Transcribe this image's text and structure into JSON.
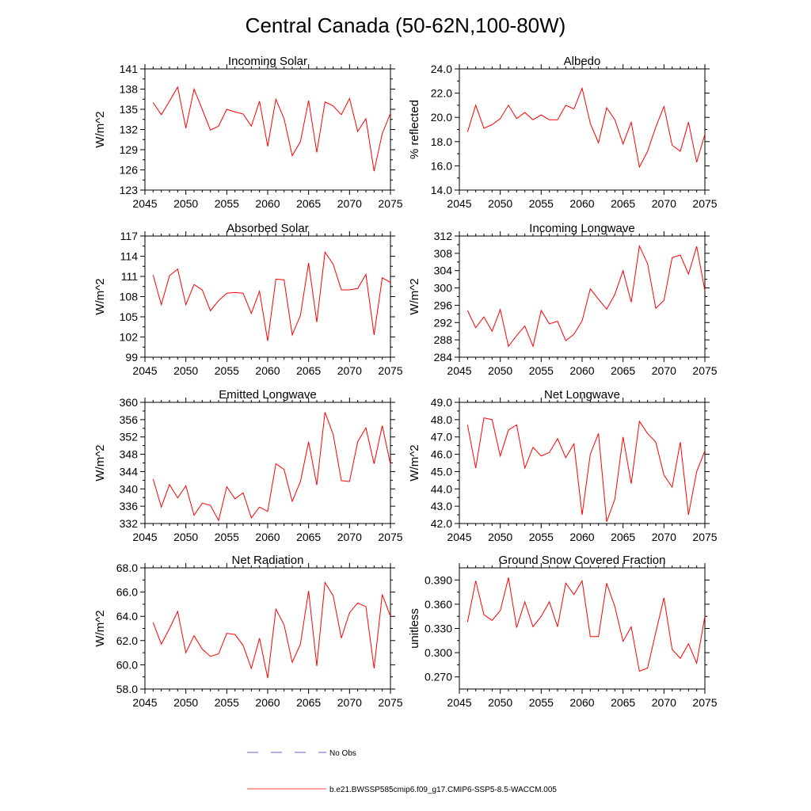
{
  "figure": {
    "title": "Central Canada (50-62N,100-80W)"
  },
  "colors": {
    "model_line": "#ff0000",
    "obs_line": "#2f2fb4",
    "axis": "#000000"
  },
  "legend": {
    "entries": [
      {
        "label": "No Obs",
        "style": "dashed",
        "color": "#2f2fb4"
      },
      {
        "label": "b.e21.BWSSP585cmip6.f09_g17.CMIP6-SSP5-8.5-WACCM.005",
        "style": "solid",
        "color": "#ff0000"
      }
    ]
  },
  "chart_data": [
    {
      "type": "line",
      "title": "Incoming Solar",
      "xlabel": "",
      "ylabel": "W/m^2",
      "xlim": [
        2045,
        2075
      ],
      "ylim": [
        123,
        141
      ],
      "xticks": [
        2045,
        2050,
        2055,
        2060,
        2065,
        2070,
        2075
      ],
      "xtick_labels": [
        "2045",
        "2050",
        "2055",
        "2060",
        "2065",
        "2070",
        "2075"
      ],
      "yticks": [
        123,
        126,
        129,
        132,
        135,
        138,
        141
      ],
      "ytick_labels": [
        "123",
        "126",
        "129",
        "132",
        "135",
        "138",
        "141"
      ],
      "x": [
        2046,
        2047,
        2048,
        2049,
        2050,
        2051,
        2052,
        2053,
        2054,
        2055,
        2056,
        2057,
        2058,
        2059,
        2060,
        2061,
        2062,
        2063,
        2064,
        2065,
        2066,
        2067,
        2068,
        2069,
        2070,
        2071,
        2072,
        2073,
        2074,
        2075
      ],
      "series": [
        {
          "name": "b.e21.BWSSP585cmip6.f09_g17.CMIP6-SSP5-8.5-WACCM.005",
          "values": [
            136.0,
            134.2,
            136.2,
            138.3,
            132.2,
            138.0,
            135.0,
            131.9,
            132.5,
            135.0,
            134.6,
            134.3,
            132.5,
            136.2,
            129.5,
            136.5,
            133.6,
            128.1,
            130.2,
            136.3,
            128.6,
            136.1,
            135.5,
            134.2,
            136.6,
            131.7,
            133.6,
            125.8,
            131.4,
            134.4
          ]
        }
      ]
    },
    {
      "type": "line",
      "title": "Albedo",
      "xlabel": "",
      "ylabel": "% reflected",
      "xlim": [
        2045,
        2075
      ],
      "ylim": [
        14.0,
        24.0
      ],
      "xticks": [
        2045,
        2050,
        2055,
        2060,
        2065,
        2070,
        2075
      ],
      "xtick_labels": [
        "2045",
        "2050",
        "2055",
        "2060",
        "2065",
        "2070",
        "2075"
      ],
      "yticks": [
        14.0,
        16.0,
        18.0,
        20.0,
        22.0,
        24.0
      ],
      "ytick_labels": [
        "14.0",
        "16.0",
        "18.0",
        "20.0",
        "22.0",
        "24.0"
      ],
      "x": [
        2046,
        2047,
        2048,
        2049,
        2050,
        2051,
        2052,
        2053,
        2054,
        2055,
        2056,
        2057,
        2058,
        2059,
        2060,
        2061,
        2062,
        2063,
        2064,
        2065,
        2066,
        2067,
        2068,
        2069,
        2070,
        2071,
        2072,
        2073,
        2074,
        2075
      ],
      "series": [
        {
          "name": "b.e21.BWSSP585cmip6.f09_g17.CMIP6-SSP5-8.5-WACCM.005",
          "values": [
            18.8,
            21.0,
            19.1,
            19.4,
            19.9,
            21.0,
            19.9,
            20.4,
            19.8,
            20.2,
            19.8,
            19.8,
            21.0,
            20.7,
            22.4,
            19.5,
            17.9,
            20.8,
            19.8,
            17.8,
            19.6,
            15.9,
            17.2,
            19.2,
            20.9,
            17.7,
            17.2,
            19.6,
            16.3,
            18.6
          ]
        }
      ]
    },
    {
      "type": "line",
      "title": "Absorbed Solar",
      "xlabel": "",
      "ylabel": "W/m^2",
      "xlim": [
        2045,
        2075
      ],
      "ylim": [
        99,
        117
      ],
      "xticks": [
        2045,
        2050,
        2055,
        2060,
        2065,
        2070,
        2075
      ],
      "xtick_labels": [
        "2045",
        "2050",
        "2055",
        "2060",
        "2065",
        "2070",
        "2075"
      ],
      "yticks": [
        99,
        102,
        105,
        108,
        111,
        114,
        117
      ],
      "ytick_labels": [
        "99",
        "102",
        "105",
        "108",
        "111",
        "114",
        "117"
      ],
      "x": [
        2046,
        2047,
        2048,
        2049,
        2050,
        2051,
        2052,
        2053,
        2054,
        2055,
        2056,
        2057,
        2058,
        2059,
        2060,
        2061,
        2062,
        2063,
        2064,
        2065,
        2066,
        2067,
        2068,
        2069,
        2070,
        2071,
        2072,
        2073,
        2074,
        2075
      ],
      "series": [
        {
          "name": "b.e21.BWSSP585cmip6.f09_g17.CMIP6-SSP5-8.5-WACCM.005",
          "values": [
            111.2,
            106.8,
            111.1,
            112.1,
            106.8,
            109.8,
            109.0,
            105.9,
            107.4,
            108.5,
            108.6,
            108.5,
            105.5,
            108.8,
            101.4,
            110.6,
            110.5,
            102.3,
            105.2,
            113.0,
            104.2,
            114.6,
            112.8,
            109.0,
            109.0,
            109.2,
            111.3,
            102.3,
            110.8,
            110.1
          ]
        }
      ]
    },
    {
      "type": "line",
      "title": "Incoming Longwave",
      "xlabel": "",
      "ylabel": "W/m^2",
      "xlim": [
        2045,
        2075
      ],
      "ylim": [
        284,
        312
      ],
      "xticks": [
        2045,
        2050,
        2055,
        2060,
        2065,
        2070,
        2075
      ],
      "xtick_labels": [
        "2045",
        "2050",
        "2055",
        "2060",
        "2065",
        "2070",
        "2075"
      ],
      "yticks": [
        284,
        288,
        292,
        296,
        300,
        304,
        308,
        312
      ],
      "ytick_labels": [
        "284",
        "288",
        "292",
        "296",
        "300",
        "304",
        "308",
        "312"
      ],
      "x": [
        2046,
        2047,
        2048,
        2049,
        2050,
        2051,
        2052,
        2053,
        2054,
        2055,
        2056,
        2057,
        2058,
        2059,
        2060,
        2061,
        2062,
        2063,
        2064,
        2065,
        2066,
        2067,
        2068,
        2069,
        2070,
        2071,
        2072,
        2073,
        2074,
        2075
      ],
      "series": [
        {
          "name": "b.e21.BWSSP585cmip6.f09_g17.CMIP6-SSP5-8.5-WACCM.005",
          "values": [
            294.8,
            290.8,
            293.3,
            290.0,
            295.0,
            286.5,
            289.0,
            291.2,
            286.5,
            294.8,
            291.7,
            292.3,
            287.8,
            289.3,
            292.4,
            299.8,
            297.4,
            295.1,
            298.5,
            304.0,
            296.7,
            309.7,
            305.6,
            295.3,
            297.1,
            307.0,
            307.6,
            303.2,
            309.6,
            299.4
          ]
        }
      ]
    },
    {
      "type": "line",
      "title": "Emitted Longwave",
      "xlabel": "",
      "ylabel": "W/m^2",
      "xlim": [
        2045,
        2075
      ],
      "ylim": [
        332,
        360
      ],
      "xticks": [
        2045,
        2050,
        2055,
        2060,
        2065,
        2070,
        2075
      ],
      "xtick_labels": [
        "2045",
        "2050",
        "2055",
        "2060",
        "2065",
        "2070",
        "2075"
      ],
      "yticks": [
        332,
        336,
        340,
        344,
        348,
        352,
        356,
        360
      ],
      "ytick_labels": [
        "332",
        "336",
        "340",
        "344",
        "348",
        "352",
        "356",
        "360"
      ],
      "x": [
        2046,
        2047,
        2048,
        2049,
        2050,
        2051,
        2052,
        2053,
        2054,
        2055,
        2056,
        2057,
        2058,
        2059,
        2060,
        2061,
        2062,
        2063,
        2064,
        2065,
        2066,
        2067,
        2068,
        2069,
        2070,
        2071,
        2072,
        2073,
        2074,
        2075
      ],
      "series": [
        {
          "name": "b.e21.BWSSP585cmip6.f09_g17.CMIP6-SSP5-8.5-WACCM.005",
          "values": [
            342.3,
            335.8,
            341.0,
            337.9,
            340.7,
            333.9,
            336.7,
            336.2,
            332.7,
            340.5,
            337.7,
            339.1,
            333.3,
            335.8,
            334.8,
            345.8,
            344.5,
            337.1,
            341.7,
            350.9,
            340.9,
            357.7,
            352.6,
            341.9,
            341.7,
            350.9,
            354.1,
            345.8,
            354.6,
            345.7
          ]
        }
      ]
    },
    {
      "type": "line",
      "title": "Net Longwave",
      "xlabel": "",
      "ylabel": "W/m^2",
      "xlim": [
        2045,
        2075
      ],
      "ylim": [
        42.0,
        49.0
      ],
      "xticks": [
        2045,
        2050,
        2055,
        2060,
        2065,
        2070,
        2075
      ],
      "xtick_labels": [
        "2045",
        "2050",
        "2055",
        "2060",
        "2065",
        "2070",
        "2075"
      ],
      "yticks": [
        42.0,
        43.0,
        44.0,
        45.0,
        46.0,
        47.0,
        48.0,
        49.0
      ],
      "ytick_labels": [
        "42.0",
        "43.0",
        "44.0",
        "45.0",
        "46.0",
        "47.0",
        "48.0",
        "49.0"
      ],
      "x": [
        2046,
        2047,
        2048,
        2049,
        2050,
        2051,
        2052,
        2053,
        2054,
        2055,
        2056,
        2057,
        2058,
        2059,
        2060,
        2061,
        2062,
        2063,
        2064,
        2065,
        2066,
        2067,
        2068,
        2069,
        2070,
        2071,
        2072,
        2073,
        2074,
        2075
      ],
      "series": [
        {
          "name": "b.e21.BWSSP585cmip6.f09_g17.CMIP6-SSP5-8.5-WACCM.005",
          "values": [
            47.7,
            45.2,
            48.1,
            48.0,
            45.9,
            47.4,
            47.7,
            45.2,
            46.4,
            45.9,
            46.1,
            46.9,
            45.8,
            46.6,
            42.5,
            46.0,
            47.2,
            42.1,
            43.4,
            47.0,
            44.3,
            47.9,
            47.2,
            46.7,
            44.8,
            44.1,
            46.7,
            42.5,
            45.0,
            46.2
          ]
        }
      ]
    },
    {
      "type": "line",
      "title": "Net Radiation",
      "xlabel": "",
      "ylabel": "W/m^2",
      "xlim": [
        2045,
        2075
      ],
      "ylim": [
        58.0,
        68.0
      ],
      "xticks": [
        2045,
        2050,
        2055,
        2060,
        2065,
        2070,
        2075
      ],
      "xtick_labels": [
        "2045",
        "2050",
        "2055",
        "2060",
        "2065",
        "2070",
        "2075"
      ],
      "yticks": [
        58.0,
        60.0,
        62.0,
        64.0,
        66.0,
        68.0
      ],
      "ytick_labels": [
        "58.0",
        "60.0",
        "62.0",
        "64.0",
        "66.0",
        "68.0"
      ],
      "x": [
        2046,
        2047,
        2048,
        2049,
        2050,
        2051,
        2052,
        2053,
        2054,
        2055,
        2056,
        2057,
        2058,
        2059,
        2060,
        2061,
        2062,
        2063,
        2064,
        2065,
        2066,
        2067,
        2068,
        2069,
        2070,
        2071,
        2072,
        2073,
        2074,
        2075
      ],
      "series": [
        {
          "name": "b.e21.BWSSP585cmip6.f09_g17.CMIP6-SSP5-8.5-WACCM.005",
          "values": [
            63.5,
            61.7,
            63.0,
            64.4,
            61.0,
            62.4,
            61.3,
            60.7,
            60.9,
            62.6,
            62.5,
            61.6,
            59.7,
            62.2,
            58.9,
            64.6,
            63.3,
            60.2,
            61.7,
            66.1,
            59.9,
            66.8,
            65.7,
            62.2,
            64.3,
            65.1,
            64.8,
            59.7,
            65.8,
            64.0
          ]
        }
      ]
    },
    {
      "type": "line",
      "title": "Ground Snow Covered Fraction",
      "xlabel": "",
      "ylabel": "unitless",
      "xlim": [
        2045,
        2075
      ],
      "ylim": [
        0.255,
        0.405
      ],
      "xticks": [
        2045,
        2050,
        2055,
        2060,
        2065,
        2070,
        2075
      ],
      "xtick_labels": [
        "2045",
        "2050",
        "2055",
        "2060",
        "2065",
        "2070",
        "2075"
      ],
      "yticks": [
        0.27,
        0.3,
        0.33,
        0.36,
        0.39
      ],
      "ytick_labels": [
        "0.270",
        "0.300",
        "0.330",
        "0.360",
        "0.390"
      ],
      "x": [
        2046,
        2047,
        2048,
        2049,
        2050,
        2051,
        2052,
        2053,
        2054,
        2055,
        2056,
        2057,
        2058,
        2059,
        2060,
        2061,
        2062,
        2063,
        2064,
        2065,
        2066,
        2067,
        2068,
        2069,
        2070,
        2071,
        2072,
        2073,
        2074,
        2075
      ],
      "series": [
        {
          "name": "b.e21.BWSSP585cmip6.f09_g17.CMIP6-SSP5-8.5-WACCM.005",
          "values": [
            0.338,
            0.389,
            0.347,
            0.34,
            0.352,
            0.393,
            0.331,
            0.363,
            0.332,
            0.345,
            0.363,
            0.332,
            0.386,
            0.372,
            0.389,
            0.32,
            0.32,
            0.386,
            0.357,
            0.314,
            0.332,
            0.277,
            0.281,
            0.325,
            0.368,
            0.304,
            0.293,
            0.311,
            0.287,
            0.345
          ]
        }
      ]
    }
  ]
}
